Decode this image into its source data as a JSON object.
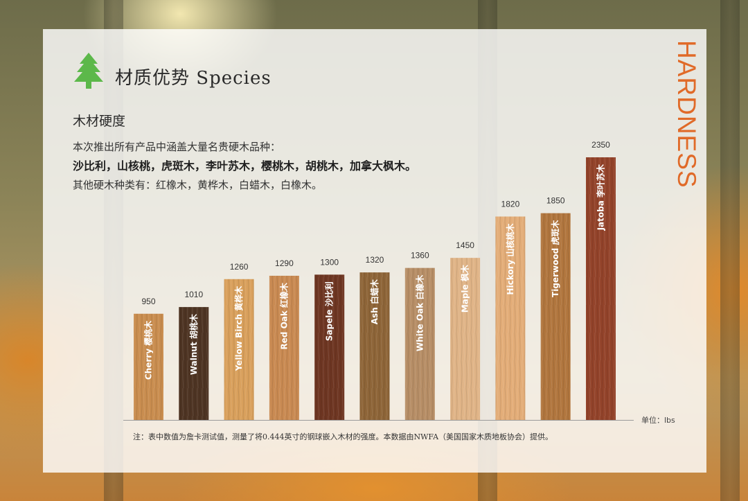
{
  "header": {
    "title": "材质优势 Species",
    "side_text": "HARDNESS",
    "accent_color": "#e06a28",
    "icon": "pine-tree-icon",
    "icon_color": "#5cb84a"
  },
  "content": {
    "subtitle": "木材硬度",
    "intro": "本次推出所有产品中涵盖大量名贵硬木品种：",
    "species_list": "沙比利，山核桃，虎斑木，李叶苏木，樱桃木，胡桃木，加拿大枫木。",
    "others": "其他硬木种类有：红橡木，黄桦木，白蜡木，白橡木。"
  },
  "chart_data": {
    "type": "bar",
    "categories": [
      "Cherry 樱桃木",
      "Walnut 胡桃木",
      "Yellow Birch 黄桦木",
      "Red Oak 红橡木",
      "Sapele 沙比利",
      "Ash 白蜡木",
      "White Oak 白橡木",
      "Maple 枫木",
      "Hickory 山核桃木",
      "Tigerwood 虎斑木",
      "Jatoba 李叶苏木"
    ],
    "values": [
      950,
      1010,
      1260,
      1290,
      1300,
      1320,
      1360,
      1450,
      1820,
      1850,
      2350
    ],
    "bar_colors": [
      "#c98d4f",
      "#4e3423",
      "#d9a05c",
      "#c98a52",
      "#6e3622",
      "#8e6538",
      "#b78e66",
      "#e0b487",
      "#e3ad78",
      "#b1763e",
      "#93432a"
    ],
    "ylim": [
      0,
      2350
    ],
    "unit_label": "单位：lbs",
    "note": "注：表中数值为詹卡测试值，测量了将0.444英寸的钢球嵌入木材的强度。本数据由NWFA（美国国家木质地板协会）提供。",
    "grid": false
  }
}
